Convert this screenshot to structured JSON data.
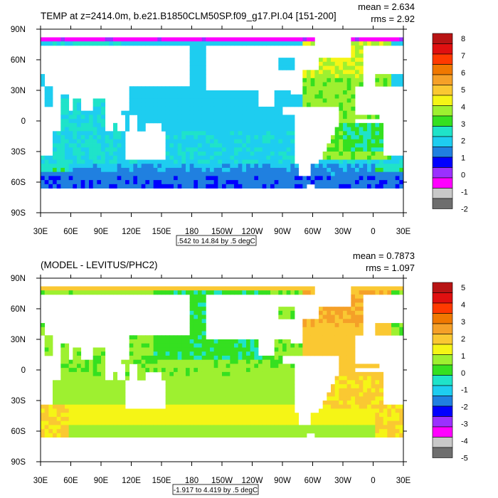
{
  "palette": {
    "-2": "#6e6e6e",
    "-1": "#c8c8c8",
    "0": "#ff00ff",
    "1": "#9b30ff",
    "2": "#0000ff",
    "3": "#2080e0",
    "4": "#1ecdf0",
    "5": "#1fe3c9",
    "6": "#2fe89a",
    "7": "#35e020",
    "8": "#9ef030",
    "9": "#f5f516",
    "10": "#fac832",
    "11": "#f5a028",
    "12": "#f07800",
    "13": "#ff3a00",
    "14": "#e01010",
    "15": "#b81414"
  },
  "panels": [
    {
      "title": "TEMP at z=2414.0m, b.e21.B1850CLM50SP.f09_g17.PI.04 [151-200]",
      "stats": [
        "mean = 2.634",
        "rms = 2.92"
      ],
      "info": ".542 to 14.84 by .5 degC",
      "xticks": [
        "30E",
        "60E",
        "90E",
        "120E",
        "150E",
        "180",
        "150W",
        "120W",
        "90W",
        "60W",
        "30W",
        "0",
        "30E"
      ],
      "yticks": [
        "90N",
        "60N",
        "30N",
        "0",
        "30S",
        "60S",
        "90S"
      ],
      "colorbar": {
        "labels": [
          "8",
          "7",
          "6",
          "5",
          "4",
          "3",
          "2",
          "1",
          "0",
          "-1",
          "-2"
        ],
        "colors": [
          "#b81414",
          "#e01010",
          "#ff3a00",
          "#f07800",
          "#f5a028",
          "#fac832",
          "#f5f516",
          "#9ef030",
          "#35e020",
          "#1fe3c9",
          "#1ecdf0",
          "#2080e0",
          "#0000ff",
          "#9b30ff",
          "#ff00ff",
          "#c8c8c8",
          "#6e6e6e"
        ]
      },
      "field": {
        "description": "Ocean temperature field approximated on a 5-degree grid as values in colorbar units (levels -2..8).",
        "levels": "grid values indexed by color-level number"
      }
    },
    {
      "title": "(MODEL - LEVITUS/PHC2)",
      "stats": [
        "mean = 0.7873",
        "rms = 1.097"
      ],
      "info": "-1.917 to 4.419 by .5 degC",
      "xticks": [
        "30E",
        "60E",
        "90E",
        "120E",
        "150E",
        "180",
        "150W",
        "120W",
        "90W",
        "60W",
        "30W",
        "0",
        "30E"
      ],
      "yticks": [
        "90N",
        "60N",
        "30N",
        "0",
        "30S",
        "60S",
        "90S"
      ],
      "colorbar": {
        "labels": [
          "5",
          "4",
          "3",
          "2",
          "1",
          "0",
          "-1",
          "-2",
          "-3",
          "-4",
          "-5"
        ],
        "colors": [
          "#b81414",
          "#e01010",
          "#ff3a00",
          "#f07800",
          "#f5a028",
          "#fac832",
          "#f5f516",
          "#9ef030",
          "#35e020",
          "#1fe3c9",
          "#1ecdf0",
          "#2080e0",
          "#0000ff",
          "#9b30ff",
          "#ff00ff",
          "#c8c8c8",
          "#6e6e6e"
        ]
      }
    }
  ]
}
